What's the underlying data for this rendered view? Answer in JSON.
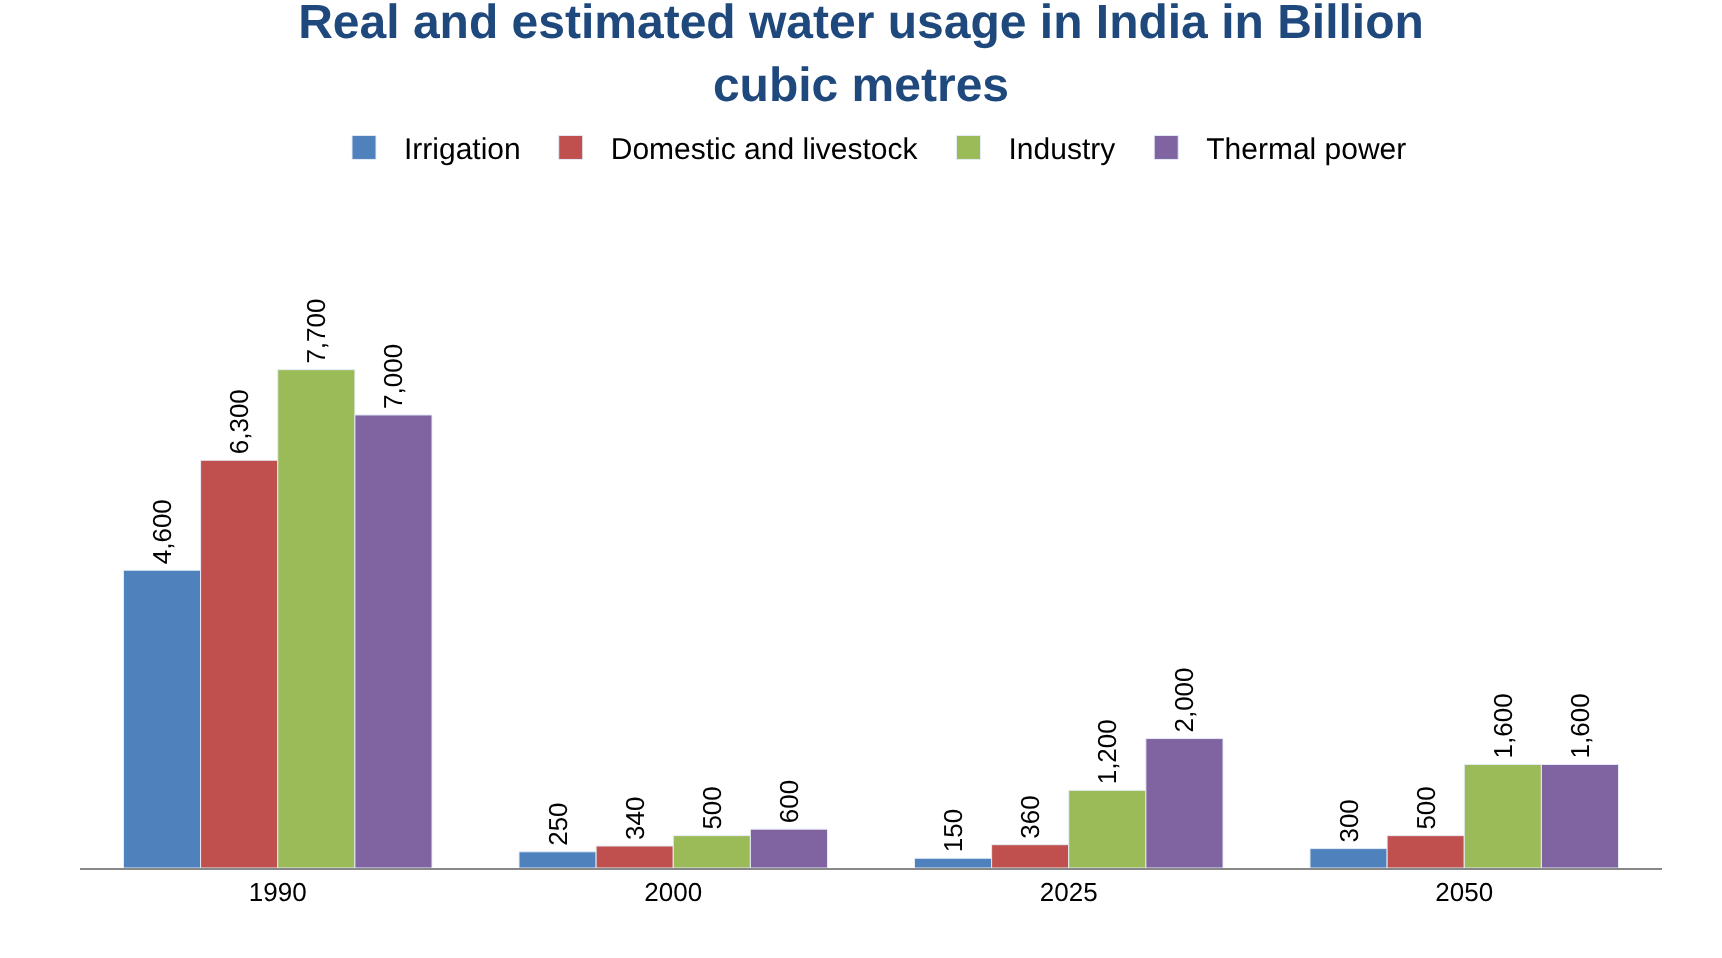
{
  "chart_data": {
    "type": "bar",
    "title": "Real and estimated water usage in India in Billion cubic metres",
    "categories": [
      "1990",
      "2000",
      "2025",
      "2050"
    ],
    "series": [
      {
        "name": "Irrigation",
        "color": "#4f81bd",
        "values": [
          4600,
          250,
          150,
          300
        ],
        "value_labels": [
          "4,600",
          "250",
          "150",
          "300"
        ]
      },
      {
        "name": "Domestic and livestock",
        "color": "#c0504d",
        "values": [
          6300,
          340,
          360,
          500
        ],
        "value_labels": [
          "6,300",
          "340",
          "360",
          "500"
        ]
      },
      {
        "name": "Industry",
        "color": "#9bbb59",
        "values": [
          7700,
          500,
          1200,
          1600
        ],
        "value_labels": [
          "7,700",
          "500",
          "1,200",
          "1,600"
        ]
      },
      {
        "name": "Thermal power",
        "color": "#8064a2",
        "values": [
          7000,
          600,
          2000,
          1600
        ],
        "value_labels": [
          "7,000",
          "600",
          "2,000",
          "1,600"
        ]
      }
    ],
    "legend": "top",
    "tick_labels": "x"
  }
}
